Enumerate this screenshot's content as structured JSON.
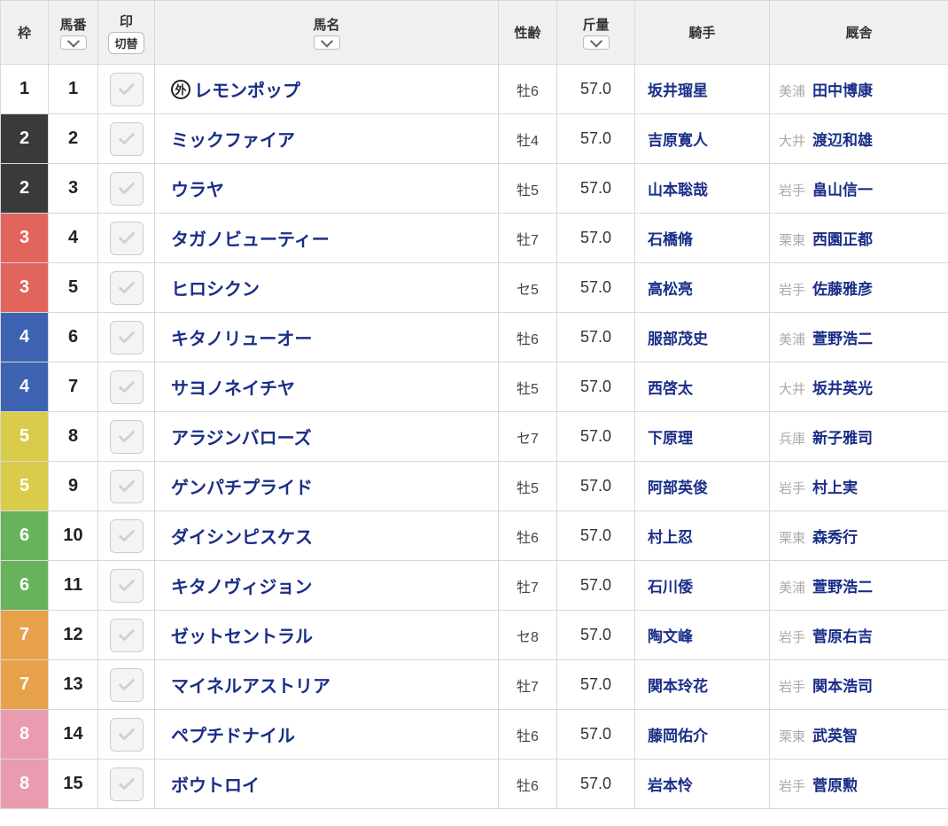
{
  "columns": {
    "waku": "枠",
    "umaban": "馬番",
    "mark": "印",
    "mark_toggle": "切替",
    "name": "馬名",
    "sexage": "性齢",
    "weight": "斤量",
    "jockey": "騎手",
    "trainer": "厩舎"
  },
  "waku_colors": {
    "1": "#ffffff",
    "2": "#3a3a3a",
    "3": "#e2655d",
    "4": "#3d62b2",
    "5": "#d9cc4b",
    "6": "#67b25b",
    "7": "#e8a14b",
    "8": "#e99bb0"
  },
  "foreign_badge_label": "外",
  "rows": [
    {
      "waku": 1,
      "umaban": 1,
      "foreign": true,
      "name": "レモンポップ",
      "sexage": "牡6",
      "weight": "57.0",
      "jockey": "坂井瑠星",
      "loc": "美浦",
      "trainer": "田中博康"
    },
    {
      "waku": 2,
      "umaban": 2,
      "foreign": false,
      "name": "ミックファイア",
      "sexage": "牡4",
      "weight": "57.0",
      "jockey": "吉原寛人",
      "loc": "大井",
      "trainer": "渡辺和雄"
    },
    {
      "waku": 2,
      "umaban": 3,
      "foreign": false,
      "name": "ウラヤ",
      "sexage": "牡5",
      "weight": "57.0",
      "jockey": "山本聡哉",
      "loc": "岩手",
      "trainer": "畠山信一"
    },
    {
      "waku": 3,
      "umaban": 4,
      "foreign": false,
      "name": "タガノビューティー",
      "sexage": "牡7",
      "weight": "57.0",
      "jockey": "石橋脩",
      "loc": "栗東",
      "trainer": "西園正都"
    },
    {
      "waku": 3,
      "umaban": 5,
      "foreign": false,
      "name": "ヒロシクン",
      "sexage": "セ5",
      "weight": "57.0",
      "jockey": "高松亮",
      "loc": "岩手",
      "trainer": "佐藤雅彦"
    },
    {
      "waku": 4,
      "umaban": 6,
      "foreign": false,
      "name": "キタノリューオー",
      "sexage": "牡6",
      "weight": "57.0",
      "jockey": "服部茂史",
      "loc": "美浦",
      "trainer": "萱野浩二"
    },
    {
      "waku": 4,
      "umaban": 7,
      "foreign": false,
      "name": "サヨノネイチヤ",
      "sexage": "牡5",
      "weight": "57.0",
      "jockey": "西啓太",
      "loc": "大井",
      "trainer": "坂井英光"
    },
    {
      "waku": 5,
      "umaban": 8,
      "foreign": false,
      "name": "アラジンバローズ",
      "sexage": "セ7",
      "weight": "57.0",
      "jockey": "下原理",
      "loc": "兵庫",
      "trainer": "新子雅司"
    },
    {
      "waku": 5,
      "umaban": 9,
      "foreign": false,
      "name": "ゲンパチプライド",
      "sexage": "牡5",
      "weight": "57.0",
      "jockey": "阿部英俊",
      "loc": "岩手",
      "trainer": "村上実"
    },
    {
      "waku": 6,
      "umaban": 10,
      "foreign": false,
      "name": "ダイシンピスケス",
      "sexage": "牡6",
      "weight": "57.0",
      "jockey": "村上忍",
      "loc": "栗東",
      "trainer": "森秀行"
    },
    {
      "waku": 6,
      "umaban": 11,
      "foreign": false,
      "name": "キタノヴィジョン",
      "sexage": "牡7",
      "weight": "57.0",
      "jockey": "石川倭",
      "loc": "美浦",
      "trainer": "萱野浩二"
    },
    {
      "waku": 7,
      "umaban": 12,
      "foreign": false,
      "name": "ゼットセントラル",
      "sexage": "セ8",
      "weight": "57.0",
      "jockey": "陶文峰",
      "loc": "岩手",
      "trainer": "菅原右吉"
    },
    {
      "waku": 7,
      "umaban": 13,
      "foreign": false,
      "name": "マイネルアストリア",
      "sexage": "牡7",
      "weight": "57.0",
      "jockey": "関本玲花",
      "loc": "岩手",
      "trainer": "関本浩司"
    },
    {
      "waku": 8,
      "umaban": 14,
      "foreign": false,
      "name": "ペプチドナイル",
      "sexage": "牡6",
      "weight": "57.0",
      "jockey": "藤岡佑介",
      "loc": "栗東",
      "trainer": "武英智"
    },
    {
      "waku": 8,
      "umaban": 15,
      "foreign": false,
      "name": "ボウトロイ",
      "sexage": "牡6",
      "weight": "57.0",
      "jockey": "岩本怜",
      "loc": "岩手",
      "trainer": "菅原勲"
    }
  ]
}
